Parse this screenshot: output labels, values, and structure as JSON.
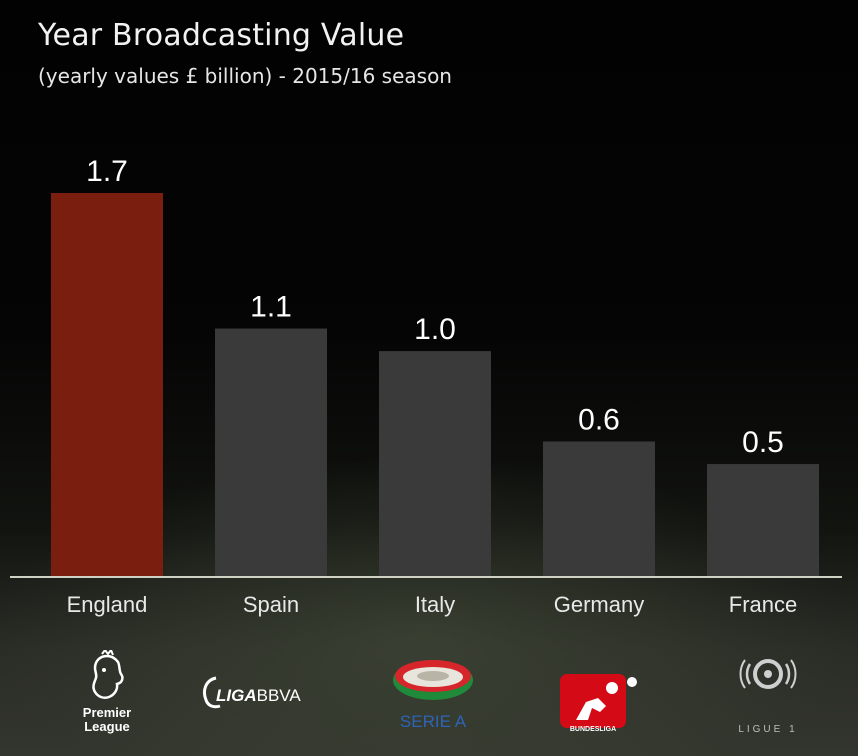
{
  "title": "Year Broadcasting Value",
  "subtitle": "(yearly values £ billion) - 2015/16 season",
  "colors": {
    "highlight": "#7a1f10",
    "bar": "#3a3a3a",
    "baseline": "#cfd1c4",
    "value_label": "#ffffff",
    "category_label": "#e8e8e8"
  },
  "chart_data": {
    "type": "bar",
    "title": "Year Broadcasting Value",
    "subtitle": "(yearly values £ billion) - 2015/16 season",
    "categories": [
      "England",
      "Spain",
      "Italy",
      "Germany",
      "France"
    ],
    "values": [
      1.7,
      1.1,
      1.0,
      0.6,
      0.5
    ],
    "value_labels": [
      "1.7",
      "1.1",
      "1.0",
      "0.6",
      "0.5"
    ],
    "highlight_index": 0,
    "ylim": [
      0,
      1.7
    ],
    "grid": false,
    "legend": "none"
  },
  "logos": {
    "premier_league": {
      "line1": "Premier",
      "line2": "League"
    },
    "liga": {
      "text_left": "LIGA",
      "text_right": "BBVA"
    },
    "serie_a": {
      "text": "SERIE A"
    },
    "bundesliga": {
      "text_left": "BUNDES",
      "text_right": "LIGA"
    },
    "ligue1": {
      "text": "LIGUE 1"
    }
  }
}
